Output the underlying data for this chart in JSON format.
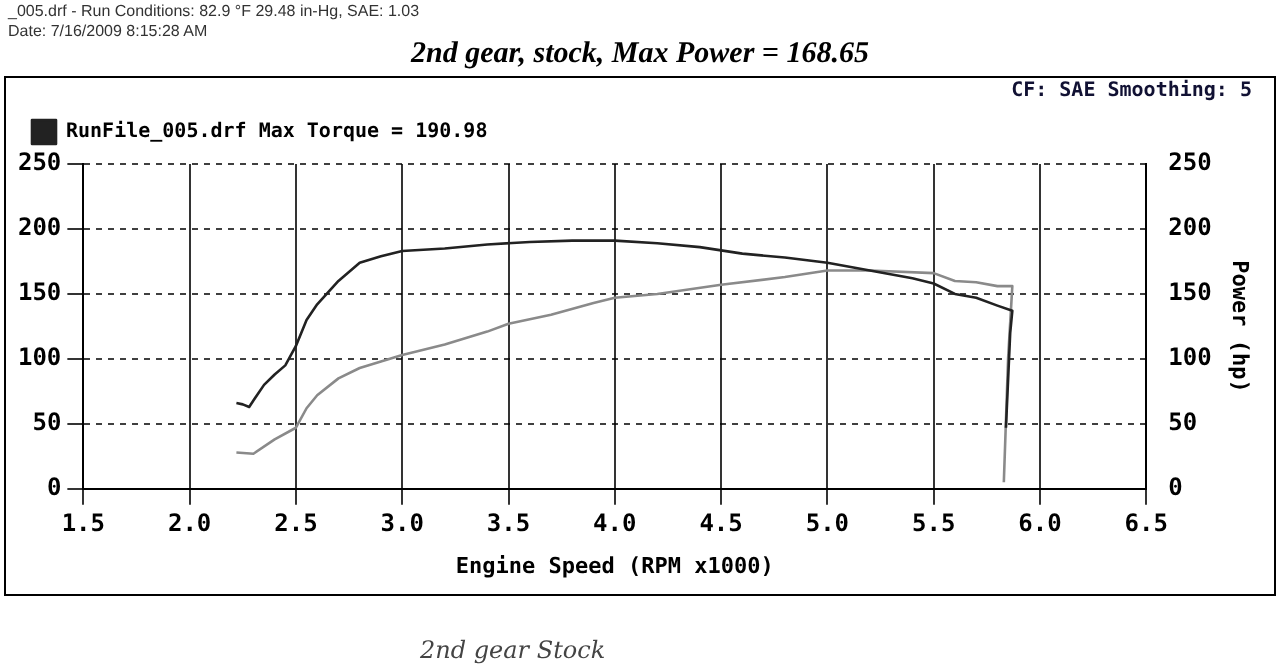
{
  "chart_data": {
    "type": "line",
    "title": "2nd gear, stock, Max Power = 168.65",
    "subtitle": "CF: SAE  Smoothing: 5",
    "xlabel": "Engine Speed (RPM x1000)",
    "y2label": "Power (hp)",
    "annotations": [
      "_005.drf  -  Run Conditions: 82.9 °F 29.48 in-Hg, SAE: 1.03",
      "Date: 7/16/2009 8:15:28 AM",
      "2nd gear Stock"
    ],
    "xlim": [
      1.5,
      6.5
    ],
    "xticks": [
      {
        "value": 1.5,
        "label": "1.5"
      },
      {
        "value": 2,
        "label": "2.0"
      },
      {
        "value": 2.5,
        "label": "2.5"
      },
      {
        "value": 3,
        "label": "3.0"
      },
      {
        "value": 3.5,
        "label": "3.5"
      },
      {
        "value": 4,
        "label": "4.0"
      },
      {
        "value": 4.5,
        "label": "4.5"
      },
      {
        "value": 5,
        "label": "5.0"
      },
      {
        "value": 5.5,
        "label": "5.5"
      },
      {
        "value": 6,
        "label": "6.0"
      },
      {
        "value": 6.5,
        "label": "6.5"
      }
    ],
    "ylim": [
      0,
      250
    ],
    "yticks": [
      0,
      50,
      100,
      150,
      200,
      250
    ],
    "y2lim": [
      0,
      250
    ],
    "y2ticks": [
      0,
      50,
      100,
      150,
      200,
      250
    ],
    "grid": true,
    "legend": "top left",
    "marker": "none",
    "line_style": "solid",
    "series": [
      {
        "name": "RunFile_005.drf Max Torque = 190.98",
        "color": "#222222",
        "x": [
          2.22,
          2.25,
          2.28,
          2.3,
          2.35,
          2.4,
          2.45,
          2.5,
          2.55,
          2.6,
          2.7,
          2.8,
          2.9,
          3.0,
          3.2,
          3.4,
          3.6,
          3.8,
          4.0,
          4.2,
          4.4,
          4.6,
          4.8,
          5.0,
          5.2,
          5.4,
          5.5,
          5.6,
          5.7,
          5.8,
          5.87,
          5.86,
          5.84
        ],
        "values": [
          66,
          65,
          63,
          68,
          80,
          88,
          95,
          110,
          130,
          142,
          160,
          174,
          179,
          183,
          185,
          188,
          190,
          191,
          191,
          189,
          186,
          181,
          178,
          174,
          168,
          162,
          158,
          150,
          147,
          141,
          137,
          120,
          47
        ]
      },
      {
        "color": "#8a8a8a",
        "axis": "y2",
        "x": [
          2.22,
          2.3,
          2.4,
          2.5,
          2.55,
          2.6,
          2.7,
          2.8,
          2.9,
          3.0,
          3.2,
          3.4,
          3.5,
          3.7,
          3.9,
          4.0,
          4.2,
          4.5,
          4.8,
          5.0,
          5.2,
          5.5,
          5.6,
          5.7,
          5.8,
          5.87,
          5.85,
          5.83
        ],
        "values": [
          28,
          27,
          38,
          47,
          62,
          72,
          85,
          93,
          98,
          103,
          111,
          121,
          127,
          134,
          143,
          147,
          150,
          157,
          163,
          168,
          168,
          166,
          160,
          159,
          156,
          156,
          100,
          5
        ]
      }
    ]
  }
}
